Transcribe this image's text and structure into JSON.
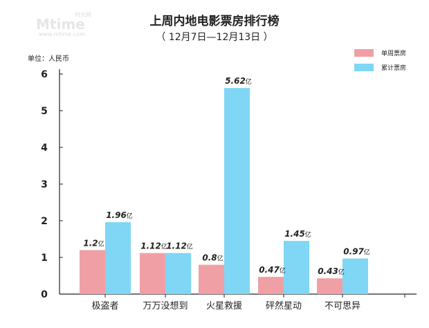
{
  "watermark": {
    "logo": "Mtime",
    "sub": "时光网",
    "url": "www.mtime.com"
  },
  "colors": {
    "series1": "#f0a0a5",
    "series2": "#7fd6f5",
    "axis": "#222222"
  },
  "chart_data": {
    "type": "bar",
    "title": "上周内地电影票房排行榜",
    "subtitle": "（ 12月7日—12月13日 ）",
    "unit_label": "单位：人民币",
    "value_unit": "亿",
    "categories": [
      "极盗者",
      "万万没想到",
      "火星救援",
      "砰然星动",
      "不可思异"
    ],
    "series": [
      {
        "name": "单周票房",
        "values": [
          1.2,
          1.12,
          0.8,
          0.47,
          0.43
        ],
        "labels": [
          "1.2",
          "1.12",
          "0.8",
          "0.47",
          "0.43"
        ]
      },
      {
        "name": "累计票房",
        "values": [
          1.96,
          1.12,
          5.62,
          1.45,
          0.97
        ],
        "labels": [
          "1.96",
          "1.12",
          "5.62",
          "1.45",
          "0.97"
        ]
      }
    ],
    "ylim": [
      0,
      6
    ],
    "yticks": [
      "0",
      "1",
      "2",
      "3",
      "4",
      "5",
      "6"
    ],
    "legend": "top-right",
    "grid": false
  }
}
